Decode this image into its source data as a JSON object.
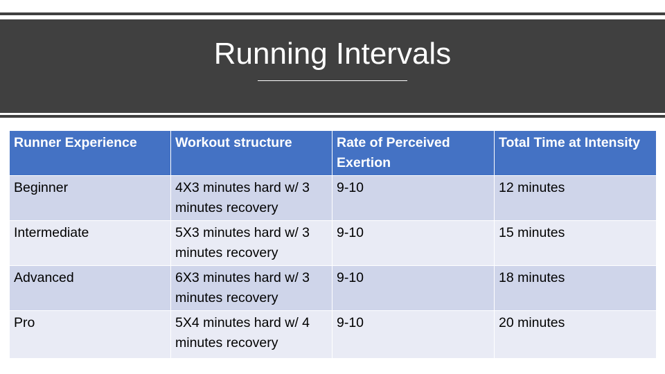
{
  "slide": {
    "title": "Running Intervals"
  },
  "table": {
    "headers": [
      "Runner Experience",
      "Workout structure",
      "Rate of Perceived Exertion",
      "Total Time at Intensity"
    ],
    "rows": [
      [
        "Beginner",
        "4X3 minutes hard w/ 3 minutes recovery",
        "9-10",
        "12 minutes"
      ],
      [
        "Intermediate",
        "5X3 minutes hard w/ 3 minutes recovery",
        "9-10",
        "15 minutes"
      ],
      [
        "Advanced",
        "6X3 minutes hard w/ 3 minutes recovery",
        "9-10",
        "18 minutes"
      ],
      [
        "Pro",
        "5X4 minutes hard w/ 4 minutes recovery",
        "9-10",
        "20 minutes"
      ]
    ]
  },
  "colors": {
    "title_band": "#404040",
    "header_fill": "#4472c4",
    "row_fill_dark": "#cfd5ea",
    "row_fill_light": "#e9ebf5"
  }
}
